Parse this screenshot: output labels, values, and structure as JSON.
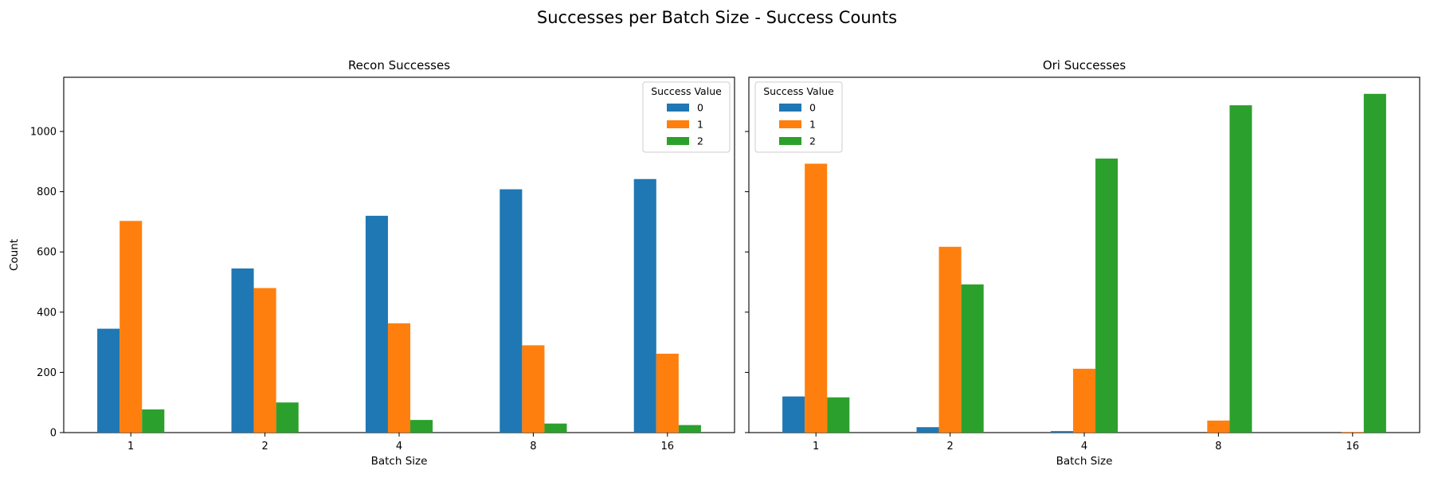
{
  "figure": {
    "suptitle": "Successes per Batch Size - Success Counts"
  },
  "chart_data": [
    {
      "type": "bar",
      "title": "Recon Successes",
      "xlabel": "Batch Size",
      "ylabel": "Count",
      "categories": [
        "1",
        "2",
        "4",
        "8",
        "16"
      ],
      "ylim": [
        0,
        1180
      ],
      "yticks": [
        0,
        200,
        400,
        600,
        800,
        1000
      ],
      "legend": {
        "title": "Success Value",
        "placement": "top-right"
      },
      "series": [
        {
          "name": "0",
          "color": "#1f77b4",
          "values": [
            345,
            545,
            720,
            808,
            842
          ]
        },
        {
          "name": "1",
          "color": "#ff7f0e",
          "values": [
            703,
            480,
            363,
            290,
            262
          ]
        },
        {
          "name": "2",
          "color": "#2ca02c",
          "values": [
            77,
            100,
            42,
            30,
            25
          ]
        }
      ]
    },
    {
      "type": "bar",
      "title": "Ori Successes",
      "xlabel": "Batch Size",
      "ylabel": "",
      "categories": [
        "1",
        "2",
        "4",
        "8",
        "16"
      ],
      "ylim": [
        0,
        1180
      ],
      "yticks": [
        0,
        200,
        400,
        600,
        800,
        1000
      ],
      "legend": {
        "title": "Success Value",
        "placement": "top-left"
      },
      "series": [
        {
          "name": "0",
          "color": "#1f77b4",
          "values": [
            120,
            18,
            5,
            0,
            0
          ]
        },
        {
          "name": "1",
          "color": "#ff7f0e",
          "values": [
            893,
            617,
            212,
            40,
            2
          ]
        },
        {
          "name": "2",
          "color": "#2ca02c",
          "values": [
            117,
            492,
            910,
            1087,
            1125
          ]
        }
      ]
    }
  ]
}
